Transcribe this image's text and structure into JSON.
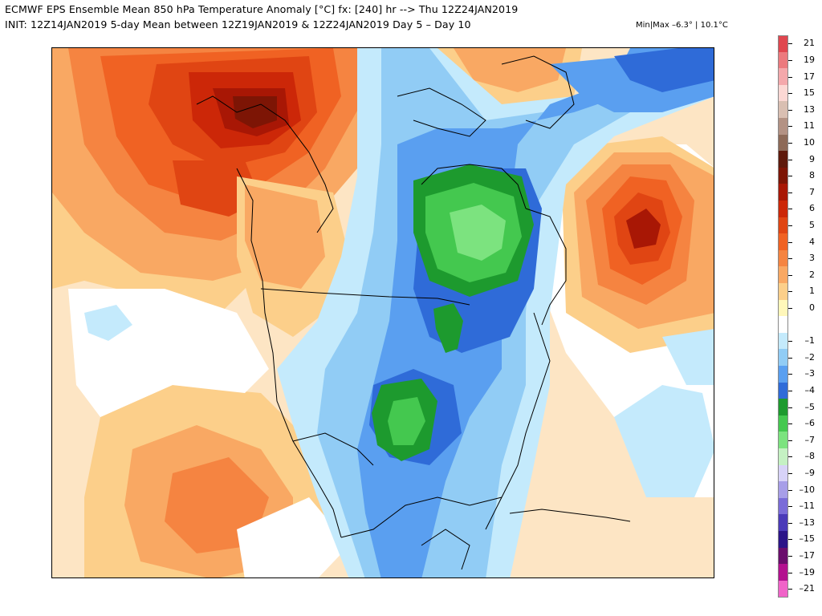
{
  "header": {
    "line1": "ECMWF EPS Ensemble Mean 850 hPa Temperature Anomaly [°C] fx: [240] hr --> Thu 12Z24JAN2019",
    "line2": "INIT: 12Z14JAN2019 5-day Mean between 12Z19JAN2019 & 12Z24JAN2019   Day 5 – Day 10",
    "minmax": "Min|Max –6.3° | 10.1°C"
  },
  "legend": {
    "levels": [
      {
        "label": "21",
        "color": "#e0474f"
      },
      {
        "label": "19",
        "color": "#ec7a7e"
      },
      {
        "label": "17",
        "color": "#f4a8ab"
      },
      {
        "label": "15",
        "color": "#fcd8d4"
      },
      {
        "label": "13",
        "color": "#d9bfb2"
      },
      {
        "label": "11",
        "color": "#b39284"
      },
      {
        "label": "10",
        "color": "#8d6a58"
      },
      {
        "label": "9",
        "color": "#5e1a0c"
      },
      {
        "label": "8",
        "color": "#7d1505"
      },
      {
        "label": "7",
        "color": "#a81705"
      },
      {
        "label": "6",
        "color": "#cc2708"
      },
      {
        "label": "5",
        "color": "#e04513"
      },
      {
        "label": "4",
        "color": "#f06223"
      },
      {
        "label": "3",
        "color": "#f58441"
      },
      {
        "label": "2",
        "color": "#f9a863"
      },
      {
        "label": "1",
        "color": "#fccf8a"
      },
      {
        "label": "0",
        "color": "#fff7ba"
      },
      {
        "label": "",
        "color": "#ffffff"
      },
      {
        "label": "-1",
        "color": "#c4eafc"
      },
      {
        "label": "-2",
        "color": "#91ccf5"
      },
      {
        "label": "-3",
        "color": "#5a9ff0"
      },
      {
        "label": "-4",
        "color": "#2f6bd8"
      },
      {
        "label": "-5",
        "color": "#1d9a2e"
      },
      {
        "label": "-6",
        "color": "#44c84f"
      },
      {
        "label": "-7",
        "color": "#7ce37f"
      },
      {
        "label": "-8",
        "color": "#c5f1c3"
      },
      {
        "label": "-9",
        "color": "#d8d3f8"
      },
      {
        "label": "-10",
        "color": "#a79ee8"
      },
      {
        "label": "-11",
        "color": "#7a6cd8"
      },
      {
        "label": "-13",
        "color": "#4a3ab8"
      },
      {
        "label": "-15",
        "color": "#2b1488"
      },
      {
        "label": "-17",
        "color": "#6a0d6c"
      },
      {
        "label": "-19",
        "color": "#b3118f"
      },
      {
        "label": "-21",
        "color": "#f063c8"
      }
    ]
  },
  "map": {
    "colors": {
      "ocean_light": "#fde5c4",
      "white": "#ffffff",
      "cold_light": "#c4eafc",
      "cold_mid": "#91ccf5",
      "cold_deep": "#5a9ff0",
      "cold_strong": "#2f6bd8",
      "green_dark": "#1d9a2e",
      "green_mid": "#44c84f",
      "green_light": "#7ce37f",
      "warm_1": "#fccf8a",
      "warm_2": "#f9a863",
      "warm_3": "#f58441",
      "warm_4": "#f06223",
      "warm_5": "#e04513",
      "warm_6": "#cc2708",
      "warm_7": "#a81705",
      "warm_8": "#7d1505",
      "coast": "#000000"
    }
  }
}
